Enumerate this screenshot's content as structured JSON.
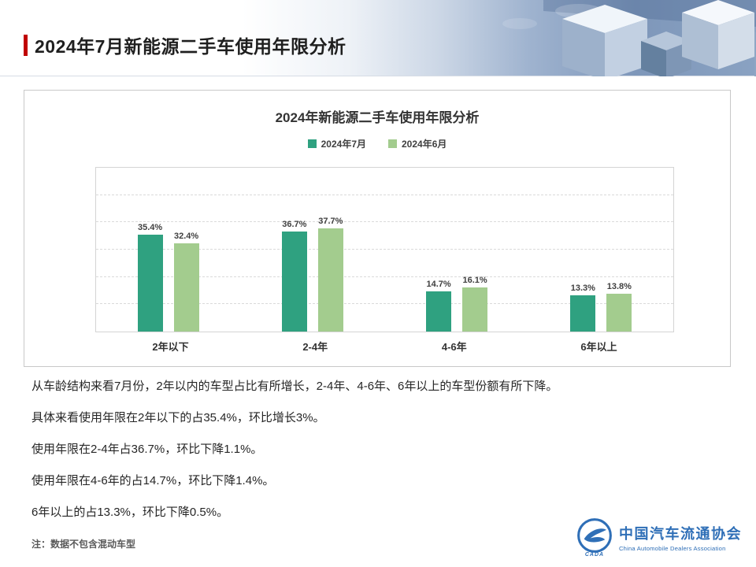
{
  "header": {
    "title": "2024年7月新能源二手车使用年限分析"
  },
  "chart_data": {
    "type": "bar",
    "title": "2024年新能源二手车使用年限分析",
    "categories": [
      "2年以下",
      "2-4年",
      "4-6年",
      "6年以上"
    ],
    "series": [
      {
        "name": "2024年7月",
        "color": "#2fa180",
        "values": [
          35.4,
          36.7,
          14.7,
          13.3
        ]
      },
      {
        "name": "2024年6月",
        "color": "#a3cc8e",
        "values": [
          32.4,
          37.7,
          16.1,
          13.8
        ]
      }
    ],
    "value_suffix": "%",
    "xlabel": "",
    "ylabel": "",
    "ylim": [
      0,
      60
    ],
    "grid_interval": 10,
    "grid": true,
    "legend_position": "top"
  },
  "body": {
    "paragraphs": [
      "从车龄结构来看7月份，2年以内的车型占比有所增长，2-4年、4-6年、6年以上的车型份额有所下降。",
      "具体来看使用年限在2年以下的占35.4%，环比增长3%。",
      "使用年限在2-4年占36.7%，环比下降1.1%。",
      "使用年限在4-6年的占14.7%，环比下降1.4%。",
      "6年以上的占13.3%，环比下降0.5%。"
    ],
    "note": "注：数据不包含混动车型"
  },
  "footer": {
    "org_cn": "中国汽车流通协会",
    "org_en": "China Automobile Dealers Association",
    "logo_text": "CADA"
  },
  "colors": {
    "accent_red": "#c00000",
    "brand_blue": "#2f6fb7",
    "series_july": "#2fa180",
    "series_june": "#a3cc8e"
  }
}
